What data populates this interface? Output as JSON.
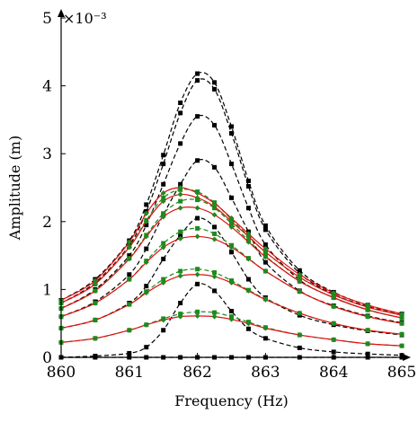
{
  "chart_data": {
    "type": "line",
    "xlabel": "Frequency (Hz)",
    "ylabel": "Amplitude (m)",
    "xlim": [
      860,
      865
    ],
    "ylim": [
      0,
      5
    ],
    "y_scale_factor_label": "×10⁻³",
    "x_ticks": [
      "860",
      "861",
      "862",
      "863",
      "864",
      "865"
    ],
    "y_ticks": [
      "0",
      "1",
      "2",
      "3",
      "4",
      "5"
    ],
    "y_units_multiplier": 0.001,
    "grid": false,
    "legend": "none",
    "colors": {
      "dashed_black": "#000000",
      "dashed_green": "#1a8a1a",
      "solid_red": "#e01010",
      "marker_green": "#1f8a1f"
    },
    "series_groups": [
      {
        "style": "solid-red-with-green-markers",
        "curves": [
          {
            "x": [
              860,
              860.5,
              861,
              861.25,
              861.5,
              861.75,
              862,
              862.25,
              862.5,
              862.75,
              863,
              863.5,
              864,
              864.5,
              865
            ],
            "y": [
              0.22,
              0.28,
              0.4,
              0.48,
              0.55,
              0.6,
              0.61,
              0.6,
              0.56,
              0.5,
              0.43,
              0.33,
              0.26,
              0.2,
              0.17
            ]
          },
          {
            "x": [
              860,
              860.5,
              861,
              861.25,
              861.5,
              861.75,
              862,
              862.25,
              862.5,
              862.75,
              863,
              863.5,
              864,
              864.5,
              865
            ],
            "y": [
              0.43,
              0.55,
              0.78,
              0.95,
              1.1,
              1.2,
              1.22,
              1.19,
              1.1,
              0.98,
              0.85,
              0.65,
              0.5,
              0.4,
              0.34
            ]
          },
          {
            "x": [
              860,
              860.5,
              861,
              861.25,
              861.5,
              861.75,
              862,
              862.25,
              862.5,
              862.75,
              863,
              863.5,
              864,
              864.5,
              865
            ],
            "y": [
              0.6,
              0.8,
              1.15,
              1.4,
              1.62,
              1.75,
              1.78,
              1.74,
              1.62,
              1.45,
              1.27,
              0.97,
              0.75,
              0.6,
              0.5
            ]
          },
          {
            "x": [
              860,
              860.5,
              861,
              861.25,
              861.5,
              861.75,
              862,
              862.25,
              862.5,
              862.75,
              863,
              863.5,
              864,
              864.5,
              865
            ],
            "y": [
              0.72,
              0.98,
              1.45,
              1.78,
              2.07,
              2.2,
              2.2,
              2.1,
              1.92,
              1.7,
              1.48,
              1.12,
              0.88,
              0.7,
              0.58
            ]
          },
          {
            "x": [
              860,
              860.5,
              861,
              861.25,
              861.5,
              861.75,
              862,
              862.25,
              862.5,
              862.75,
              863,
              863.5,
              864,
              864.5,
              865
            ],
            "y": [
              0.8,
              1.08,
              1.62,
              2.0,
              2.3,
              2.4,
              2.35,
              2.22,
              2.0,
              1.78,
              1.55,
              1.18,
              0.92,
              0.74,
              0.62
            ]
          },
          {
            "x": [
              860,
              860.5,
              861,
              861.25,
              861.5,
              861.75,
              862,
              862.25,
              862.5,
              862.75,
              863,
              863.5,
              864,
              864.5,
              865
            ],
            "y": [
              0.84,
              1.13,
              1.7,
              2.12,
              2.42,
              2.5,
              2.42,
              2.27,
              2.05,
              1.82,
              1.6,
              1.22,
              0.95,
              0.77,
              0.64
            ]
          }
        ]
      },
      {
        "style": "dashed-green-with-green-markers",
        "curves": [
          {
            "x": [
              860,
              860.5,
              861,
              861.25,
              861.5,
              861.75,
              862,
              862.25,
              862.5,
              862.75,
              863,
              863.5,
              864,
              864.5,
              865
            ],
            "y": [
              0.22,
              0.28,
              0.4,
              0.48,
              0.57,
              0.64,
              0.67,
              0.66,
              0.6,
              0.52,
              0.44,
              0.33,
              0.26,
              0.2,
              0.17
            ]
          },
          {
            "x": [
              860,
              860.5,
              861,
              861.25,
              861.5,
              861.75,
              862,
              862.25,
              862.5,
              862.75,
              863,
              863.5,
              864,
              864.5,
              865
            ],
            "y": [
              0.43,
              0.55,
              0.78,
              0.97,
              1.15,
              1.27,
              1.3,
              1.25,
              1.13,
              0.99,
              0.86,
              0.65,
              0.5,
              0.4,
              0.34
            ]
          },
          {
            "x": [
              860,
              860.5,
              861,
              861.25,
              861.5,
              861.75,
              862,
              862.25,
              862.5,
              862.75,
              863,
              863.5,
              864,
              864.5,
              865
            ],
            "y": [
              0.6,
              0.8,
              1.15,
              1.42,
              1.68,
              1.85,
              1.9,
              1.82,
              1.65,
              1.46,
              1.27,
              0.97,
              0.75,
              0.6,
              0.5
            ]
          },
          {
            "x": [
              860,
              860.5,
              861,
              861.25,
              861.5,
              861.75,
              862,
              862.25,
              862.5,
              862.75,
              863,
              863.5,
              864,
              864.5,
              865
            ],
            "y": [
              0.72,
              0.98,
              1.46,
              1.8,
              2.12,
              2.3,
              2.32,
              2.2,
              1.97,
              1.72,
              1.49,
              1.12,
              0.88,
              0.7,
              0.58
            ]
          },
          {
            "x": [
              860,
              860.5,
              861,
              861.25,
              861.5,
              861.75,
              862,
              862.25,
              862.5,
              862.75,
              863,
              863.5,
              864,
              864.5,
              865
            ],
            "y": [
              0.8,
              1.08,
              1.63,
              2.02,
              2.35,
              2.47,
              2.44,
              2.28,
              2.03,
              1.79,
              1.55,
              1.18,
              0.92,
              0.74,
              0.62
            ]
          }
        ]
      },
      {
        "style": "dashed-black-with-black-markers",
        "curves": [
          {
            "x": [
              860,
              860.5,
              861,
              861.25,
              861.5,
              861.75,
              862,
              862.25,
              862.5,
              862.75,
              863,
              863.5,
              864,
              864.5,
              865
            ],
            "y": [
              0.0,
              0.0,
              0.0,
              0.0,
              0.0,
              0.0,
              0.0,
              0.0,
              0.0,
              0.0,
              0.0,
              0.0,
              0.0,
              0.0,
              0.0
            ]
          },
          {
            "x": [
              860,
              860.5,
              861,
              861.25,
              861.5,
              861.75,
              862,
              862.25,
              862.5,
              862.75,
              863,
              863.5,
              864,
              864.5,
              865
            ],
            "y": [
              0.0,
              0.02,
              0.06,
              0.15,
              0.4,
              0.8,
              1.08,
              0.98,
              0.68,
              0.42,
              0.28,
              0.14,
              0.08,
              0.05,
              0.03
            ]
          },
          {
            "x": [
              860,
              860.5,
              861,
              861.25,
              861.5,
              861.75,
              862,
              862.25,
              862.5,
              862.75,
              863,
              863.5,
              864,
              864.5,
              865
            ],
            "y": [
              0.43,
              0.55,
              0.8,
              1.05,
              1.45,
              1.8,
              2.05,
              1.92,
              1.55,
              1.15,
              0.88,
              0.62,
              0.48,
              0.39,
              0.33
            ]
          },
          {
            "x": [
              860,
              860.5,
              861,
              861.25,
              861.5,
              861.75,
              862,
              862.25,
              862.5,
              862.75,
              863,
              863.5,
              864,
              864.5,
              865
            ],
            "y": [
              0.6,
              0.82,
              1.22,
              1.6,
              2.1,
              2.55,
              2.9,
              2.8,
              2.35,
              1.85,
              1.4,
              0.98,
              0.76,
              0.61,
              0.51
            ]
          },
          {
            "x": [
              860,
              860.5,
              861,
              861.25,
              861.5,
              861.75,
              862,
              862.25,
              862.5,
              862.75,
              863,
              863.5,
              864,
              864.5,
              865
            ],
            "y": [
              0.72,
              1.0,
              1.5,
              1.95,
              2.55,
              3.15,
              3.55,
              3.42,
              2.85,
              2.2,
              1.66,
              1.14,
              0.88,
              0.7,
              0.58
            ]
          },
          {
            "x": [
              860,
              860.5,
              861,
              861.25,
              861.5,
              861.75,
              862,
              862.25,
              862.5,
              862.75,
              863,
              863.5,
              864,
              864.5,
              865
            ],
            "y": [
              0.8,
              1.1,
              1.65,
              2.15,
              2.85,
              3.6,
              4.08,
              3.95,
              3.3,
              2.52,
              1.88,
              1.24,
              0.93,
              0.75,
              0.62
            ]
          },
          {
            "x": [
              860,
              860.5,
              861,
              861.25,
              861.5,
              861.75,
              862,
              862.25,
              862.5,
              862.75,
              863,
              863.5,
              864,
              864.5,
              865
            ],
            "y": [
              0.84,
              1.15,
              1.72,
              2.25,
              2.98,
              3.75,
              4.18,
              4.05,
              3.4,
              2.6,
              1.94,
              1.28,
              0.96,
              0.77,
              0.64
            ]
          }
        ]
      }
    ]
  }
}
